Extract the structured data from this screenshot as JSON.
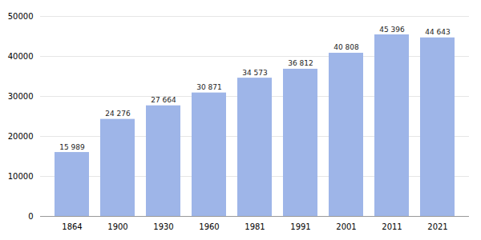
{
  "chart_data": {
    "type": "bar",
    "categories": [
      "1864",
      "1900",
      "1930",
      "1960",
      "1981",
      "1991",
      "2001",
      "2011",
      "2021"
    ],
    "values": [
      15989,
      24276,
      27664,
      30871,
      34573,
      36812,
      40808,
      45396,
      44643
    ],
    "value_labels": [
      "15 989",
      "24 276",
      "27 664",
      "30 871",
      "34 573",
      "36 812",
      "40 808",
      "45 396",
      "44 643"
    ],
    "data_labels": true,
    "color": "#9eb5e8",
    "ylim": [
      0,
      50000
    ],
    "yticks": [
      0,
      10000,
      20000,
      30000,
      40000,
      50000
    ],
    "grid": true
  }
}
